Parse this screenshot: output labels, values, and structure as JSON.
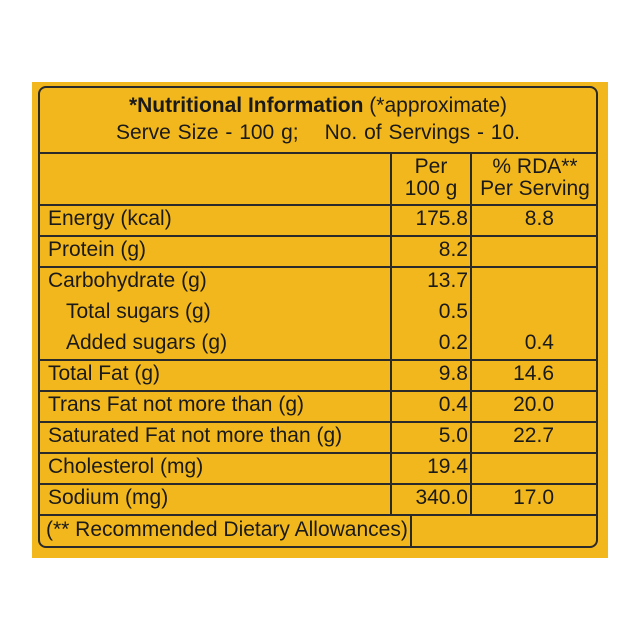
{
  "header": {
    "title": "*Nutritional Information",
    "approx": "(*approximate)",
    "serve_size": "Serve Size - 100 g;",
    "servings": "No. of Servings - 10."
  },
  "columns": {
    "per_line1": "Per",
    "per_line2": "100 g",
    "rda_line1": "% RDA**",
    "rda_line2": "Per Serving"
  },
  "rows": [
    {
      "name": "Energy (kcal)",
      "per100g": "175.8",
      "rda": "8.8"
    },
    {
      "name": "Protein (g)",
      "per100g": "8.2",
      "rda": ""
    },
    {
      "name": "Carbohydrate (g)",
      "per100g": "13.7",
      "rda": ""
    },
    {
      "name": "Total sugars (g)",
      "per100g": "0.5",
      "rda": ""
    },
    {
      "name": "Added sugars (g)",
      "per100g": "0.2",
      "rda": "0.4"
    },
    {
      "name": "Total Fat (g)",
      "per100g": "9.8",
      "rda": "14.6"
    },
    {
      "name": "Trans Fat not more than (g)",
      "per100g": "0.4",
      "rda": "20.0"
    },
    {
      "name": "Saturated Fat not more than (g)",
      "per100g": "5.0",
      "rda": "22.7"
    },
    {
      "name": "Cholesterol (mg)",
      "per100g": "19.4",
      "rda": ""
    },
    {
      "name": "Sodium (mg)",
      "per100g": "340.0",
      "rda": "17.0"
    }
  ],
  "footer": "(** Recommended Dietary Allowances)",
  "colors": {
    "label_background": "#f2b71c",
    "ink": "#1a1a1a"
  }
}
